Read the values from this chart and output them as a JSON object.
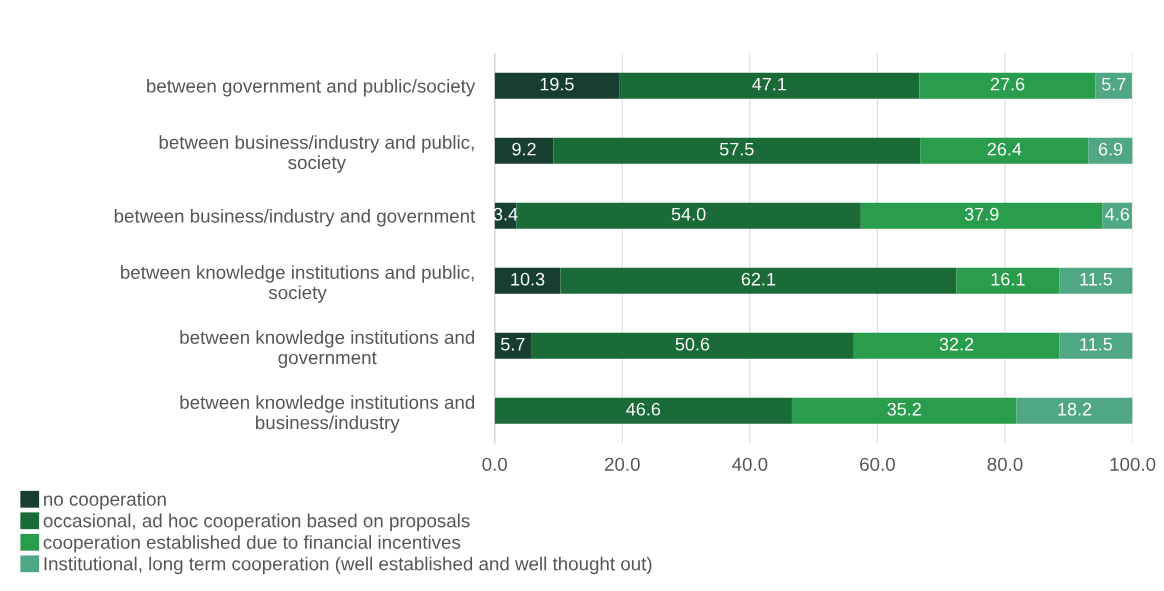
{
  "chart_data": {
    "type": "bar",
    "orientation": "horizontal",
    "stacked": true,
    "categories": [
      "between government and public/society",
      "between business/industry and public,\nsociety",
      "between business/industry and government",
      "between knowledge institutions and public,\nsociety",
      "between knowledge institutions and\ngovernment",
      "between knowledge institutions and\nbusiness/industry"
    ],
    "series": [
      {
        "name": "no cooperation",
        "color": "#173f30",
        "values": [
          19.5,
          9.2,
          3.4,
          10.3,
          5.7,
          null
        ],
        "value_labels": [
          "19.5",
          "9.2",
          "3.4",
          "10.3",
          "5.7",
          null
        ]
      },
      {
        "name": "occasional, ad hoc cooperation based on proposals",
        "color": "#1b6b38",
        "values": [
          47.1,
          57.5,
          54.0,
          62.1,
          50.6,
          46.6
        ],
        "value_labels": [
          "47.1",
          "57.5",
          "54.0",
          "62.1",
          "50.6",
          "46.6"
        ]
      },
      {
        "name": "cooperation established due to financial incentives",
        "color": "#2a9d4c",
        "values": [
          27.6,
          26.4,
          37.9,
          16.1,
          32.2,
          35.2
        ],
        "value_labels": [
          "27.6",
          "26.4",
          "37.9",
          "16.1",
          "32.2",
          "35.2"
        ]
      },
      {
        "name": "Institutional, long term cooperation (well established and well thought out)",
        "color": "#4fa784",
        "values": [
          5.7,
          6.9,
          4.6,
          11.5,
          11.5,
          18.2
        ],
        "value_labels": [
          "5.7",
          "6.9",
          "4.6",
          "11.5",
          "11.5",
          "18.2"
        ]
      }
    ],
    "xlim": [
      0,
      100
    ],
    "xticks": [
      {
        "value": 0,
        "label": "0.0"
      },
      {
        "value": 20,
        "label": "20.0"
      },
      {
        "value": 40,
        "label": "40.0"
      },
      {
        "value": 60,
        "label": "60.0"
      },
      {
        "value": 80,
        "label": "80.0"
      },
      {
        "value": 100,
        "label": "100.0"
      }
    ],
    "grid": "x",
    "legend": "bottom left"
  }
}
